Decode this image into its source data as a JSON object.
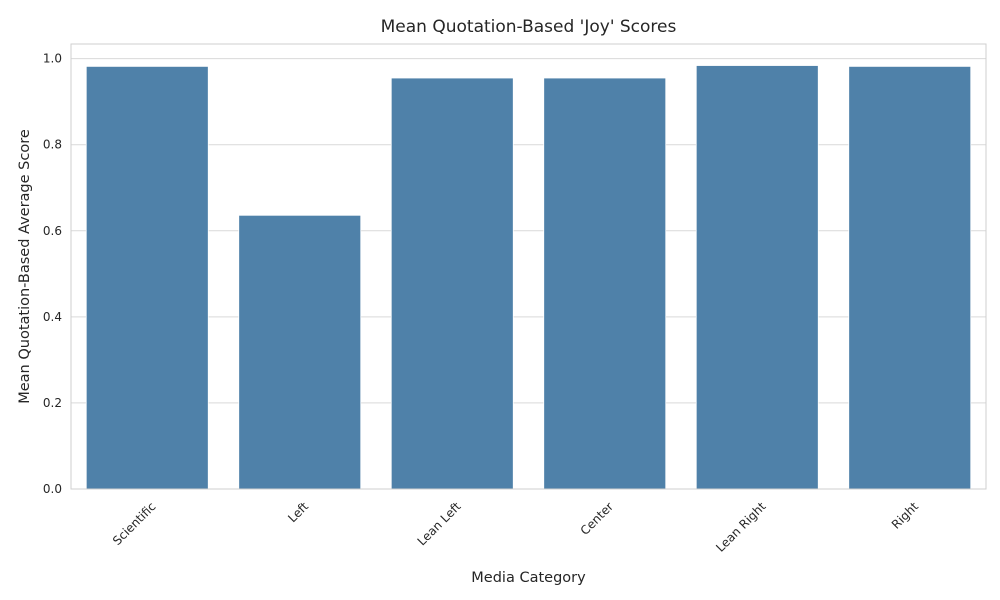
{
  "chart_data": {
    "type": "bar",
    "title": "Mean Quotation-Based 'Joy' Scores",
    "xlabel": "Media Category",
    "ylabel": "Mean Quotation-Based Average Score",
    "categories": [
      "Scientific",
      "Left",
      "Lean Left",
      "Center",
      "Lean Right",
      "Right"
    ],
    "values": [
      0.982,
      0.636,
      0.955,
      0.955,
      0.984,
      0.982
    ],
    "ylim": [
      0,
      1.034
    ],
    "yticks": [
      "0.0",
      "0.2",
      "0.4",
      "0.6",
      "0.8",
      "1.0"
    ],
    "grid": "horizontal",
    "bar_color": "#4f81a9"
  }
}
